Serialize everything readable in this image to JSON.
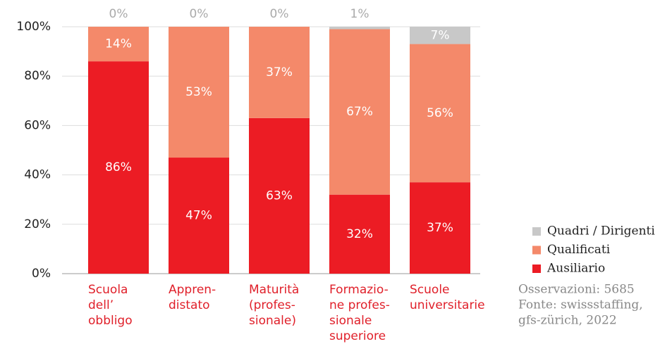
{
  "chart_data": {
    "type": "stacked_bar",
    "categories": [
      "Scuola\ndell’\nobbligo",
      "Appren-\ndistato",
      "Maturità\n(profes-\nsionale)",
      "Formazio-\nne profes-\nsionale\nsuperiore",
      "Scuole\nuniversitarie"
    ],
    "series": [
      {
        "name": "Ausiliario",
        "color": "#ec1c24",
        "values": [
          86,
          47,
          63,
          32,
          37
        ],
        "value_labels": [
          "86%",
          "47%",
          "63%",
          "32%",
          "37%"
        ]
      },
      {
        "name": "Qualificati",
        "color": "#f4896a",
        "values": [
          14,
          53,
          37,
          67,
          56
        ],
        "value_labels": [
          "14%",
          "53%",
          "37%",
          "67%",
          "56%"
        ]
      },
      {
        "name": "Quadri / Dirigenti",
        "color": "#c8c8c8",
        "values": [
          0,
          0,
          0,
          1,
          7
        ],
        "value_labels": [
          "0%",
          "0%",
          "0%",
          "1%",
          "7%"
        ]
      }
    ],
    "ylim": [
      0,
      100
    ],
    "yticks": [
      {
        "value": 0,
        "label": "0%"
      },
      {
        "value": 20,
        "label": "20%"
      },
      {
        "value": 40,
        "label": "40%"
      },
      {
        "value": 60,
        "label": "60%"
      },
      {
        "value": 80,
        "label": "80%"
      },
      {
        "value": 100,
        "label": "100%"
      }
    ],
    "grid": true,
    "notes": [
      "Osservazioni: 5685",
      "Fonte: swissstaffing,",
      "gfs-zürich, 2022"
    ]
  }
}
